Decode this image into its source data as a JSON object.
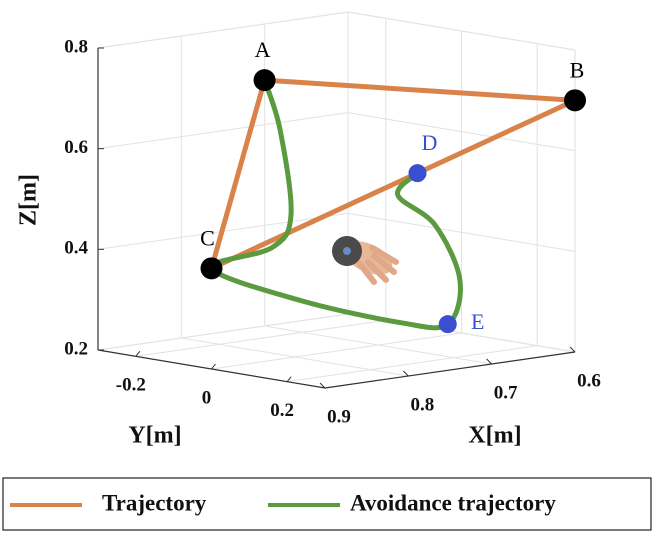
{
  "chart_data": {
    "type": "line3d",
    "xlabel": "X[m]",
    "ylabel": "Y[m]",
    "zlabel": "Z[m]",
    "xlim": [
      0.6,
      0.9
    ],
    "ylim": [
      -0.3,
      0.3
    ],
    "zlim": [
      0.2,
      0.8
    ],
    "xticks": [
      0.6,
      0.7,
      0.8,
      0.9
    ],
    "yticks": [
      -0.2,
      0,
      0.2
    ],
    "zticks": [
      0.2,
      0.4,
      0.6,
      0.8
    ],
    "grid": true,
    "series": [
      {
        "name": "Trajectory",
        "color": "#d9834a",
        "x": [
          0.8,
          0.6,
          0.9,
          0.8
        ],
        "y": [
          -0.08,
          0.3,
          0,
          -0.08
        ],
        "z": [
          0.74,
          0.7,
          0.4,
          0.74
        ]
      },
      {
        "name": "Avoidance trajectory",
        "color": "#5b9a3f",
        "x": [
          0.8,
          0.82,
          0.85,
          0.88,
          0.9,
          0.85,
          0.77,
          0.73,
          0.72,
          0.72,
          0.73,
          0.73
        ],
        "y": [
          -0.08,
          0.005,
          0.1,
          0.116,
          0,
          0.124,
          0.212,
          0.25,
          0.26,
          0.194,
          0.118,
          0.17
        ],
        "z": [
          0.74,
          0.657,
          0.507,
          0.451,
          0.4,
          0.34,
          0.288,
          0.28,
          0.367,
          0.468,
          0.52,
          0.57
        ]
      }
    ],
    "points": [
      {
        "label": "A",
        "color": "#000000",
        "x": 0.8,
        "y": -0.08,
        "z": 0.74
      },
      {
        "label": "B",
        "color": "#000000",
        "x": 0.6,
        "y": 0.3,
        "z": 0.7
      },
      {
        "label": "C",
        "color": "#000000",
        "x": 0.9,
        "y": 0,
        "z": 0.4
      },
      {
        "label": "D",
        "color": "#3a4fd0",
        "x": 0.73,
        "y": 0.17,
        "z": 0.57
      },
      {
        "label": "E",
        "color": "#3a4fd0",
        "x": 0.73,
        "y": 0.25,
        "z": 0.28
      }
    ]
  }
}
